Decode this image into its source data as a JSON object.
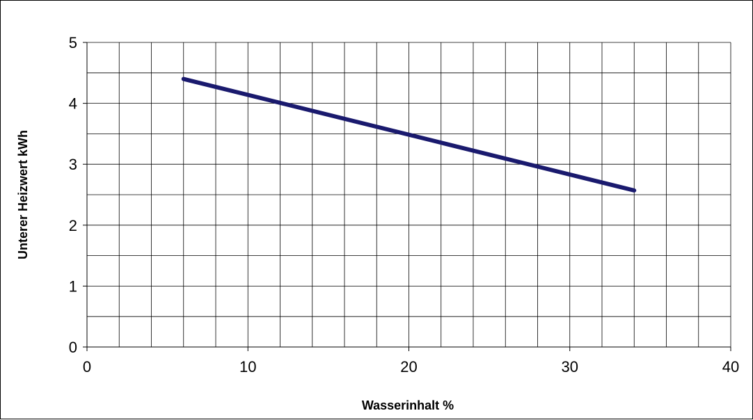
{
  "chart_data": {
    "type": "line",
    "title": "",
    "xlabel": "Wasserinhalt %",
    "ylabel": "Unterer Heizwert   kWh",
    "xlim": [
      0,
      40
    ],
    "ylim": [
      0,
      5
    ],
    "x_ticks": [
      0,
      10,
      20,
      30,
      40
    ],
    "y_ticks": [
      0,
      1,
      2,
      3,
      4,
      5
    ],
    "x_tick_labels": [
      "0",
      "10",
      "20",
      "30",
      "40"
    ],
    "y_tick_labels": [
      "0",
      "1",
      "2",
      "3",
      "4",
      "5"
    ],
    "x_minor_step": 2,
    "y_minor_step": 0.5,
    "grid": true,
    "legend": "none",
    "series": [
      {
        "color": "#1a1a6e",
        "x": [
          6,
          34
        ],
        "y": [
          4.4,
          2.57
        ]
      }
    ]
  }
}
